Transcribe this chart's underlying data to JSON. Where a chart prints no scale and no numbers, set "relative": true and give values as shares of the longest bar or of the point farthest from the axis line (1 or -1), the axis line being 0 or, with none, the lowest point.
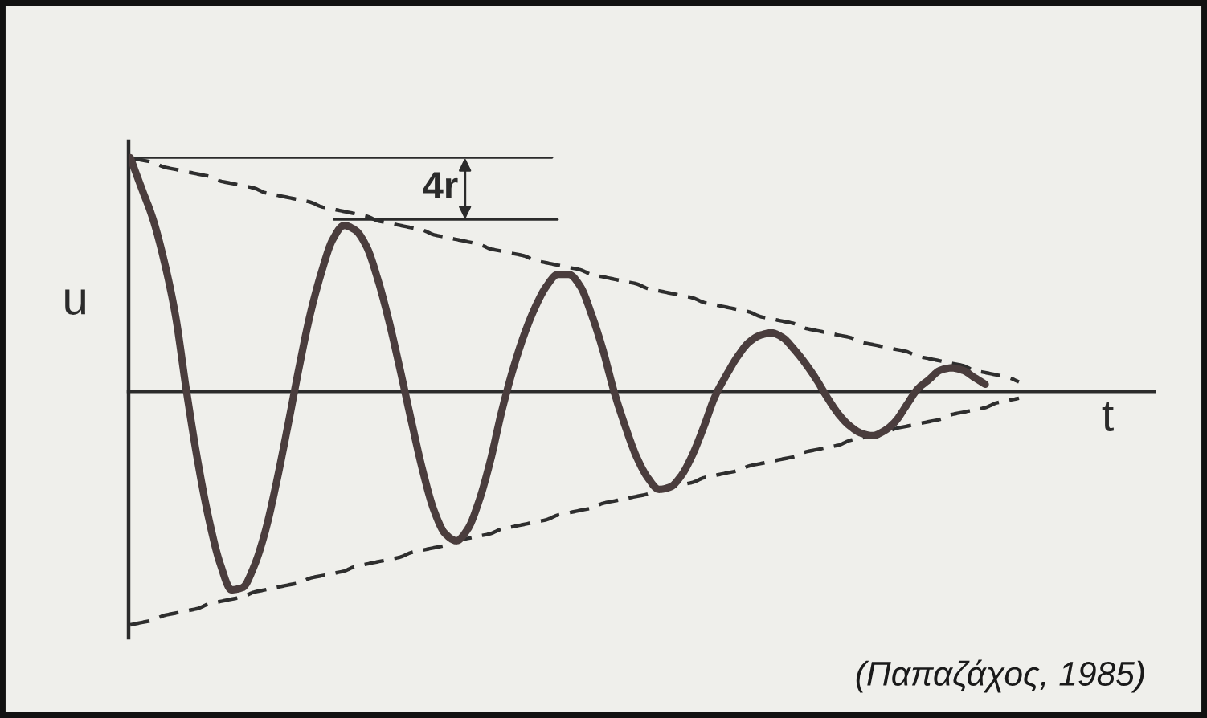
{
  "chart_data": {
    "type": "line",
    "relative": true,
    "xlabel": "t",
    "ylabel": "u",
    "categories": [
      null,
      null,
      null,
      null,
      null,
      null,
      null,
      null,
      null,
      null,
      null,
      null,
      null,
      null,
      null,
      null,
      null,
      null,
      null,
      null,
      null,
      null,
      null,
      null,
      null,
      null,
      null,
      null,
      null,
      null,
      null,
      null,
      null,
      null,
      null,
      null,
      null,
      null,
      null,
      null,
      null,
      null,
      null,
      null,
      null,
      null,
      null,
      null,
      null,
      null,
      null,
      null,
      null,
      null,
      null,
      null,
      null,
      null,
      null,
      null,
      null,
      null,
      null,
      null,
      null,
      null,
      null,
      null,
      null,
      null,
      null,
      null,
      null,
      null,
      null,
      null,
      null,
      null,
      null,
      null,
      null,
      null,
      null,
      null,
      null,
      null,
      null,
      null,
      null,
      null,
      null,
      null
    ],
    "series": [
      {
        "color": "#4a3d3d",
        "line_style": "solid",
        "values": [
          1.0,
          0.87,
          0.74,
          0.56,
          0.33,
          0.0,
          -0.3,
          -0.55,
          -0.74,
          -0.85,
          -0.84,
          -0.75,
          -0.6,
          -0.39,
          -0.15,
          0.1,
          0.33,
          0.51,
          0.65,
          0.71,
          0.69,
          0.62,
          0.48,
          0.3,
          0.09,
          -0.13,
          -0.34,
          -0.51,
          -0.61,
          -0.64,
          -0.59,
          -0.47,
          -0.3,
          -0.09,
          0.09,
          0.24,
          0.36,
          0.45,
          0.5,
          0.5,
          0.45,
          0.33,
          0.18,
          0.0,
          -0.15,
          -0.28,
          -0.37,
          -0.42,
          -0.41,
          -0.36,
          -0.27,
          -0.15,
          -0.02,
          0.07,
          0.15,
          0.21,
          0.24,
          0.25,
          0.23,
          0.18,
          0.12,
          0.05,
          -0.03,
          -0.1,
          -0.15,
          -0.18,
          -0.19,
          -0.17,
          -0.13,
          -0.06,
          0.01,
          0.05,
          0.09,
          0.1,
          0.09,
          0.06,
          0.03,
          null,
          null,
          null,
          null,
          null,
          null,
          null,
          null,
          null,
          null,
          null,
          null,
          null,
          null,
          null
        ]
      },
      {
        "color": "#2e2e2e",
        "line_style": "dashed",
        "values": [
          1.0,
          0.99,
          0.98,
          0.96,
          0.95,
          0.94,
          0.93,
          0.92,
          0.9,
          0.89,
          0.88,
          0.87,
          0.85,
          0.84,
          0.83,
          0.82,
          0.81,
          0.79,
          0.78,
          0.77,
          0.76,
          0.75,
          0.73,
          0.72,
          0.71,
          0.7,
          0.69,
          0.67,
          0.66,
          0.65,
          0.64,
          0.63,
          0.61,
          0.6,
          0.59,
          0.58,
          0.56,
          0.55,
          0.54,
          0.53,
          0.52,
          0.5,
          0.49,
          0.48,
          0.47,
          0.46,
          0.44,
          0.43,
          0.42,
          0.41,
          0.4,
          0.38,
          0.37,
          0.36,
          0.35,
          0.34,
          0.32,
          0.31,
          0.3,
          0.29,
          0.27,
          0.26,
          0.25,
          0.24,
          0.23,
          0.21,
          0.2,
          0.19,
          0.18,
          0.17,
          0.15,
          0.14,
          0.13,
          0.12,
          0.11,
          0.09,
          0.08,
          0.07,
          0.06,
          0.04,
          null,
          null,
          null,
          null,
          null,
          null,
          null,
          null,
          null,
          null,
          null,
          null
        ]
      },
      {
        "color": "#2e2e2e",
        "line_style": "dashed",
        "values": [
          -1.0,
          -0.99,
          -0.98,
          -0.96,
          -0.95,
          -0.94,
          -0.93,
          -0.91,
          -0.9,
          -0.89,
          -0.88,
          -0.86,
          -0.85,
          -0.84,
          -0.83,
          -0.82,
          -0.8,
          -0.79,
          -0.78,
          -0.77,
          -0.75,
          -0.74,
          -0.73,
          -0.72,
          -0.71,
          -0.69,
          -0.68,
          -0.67,
          -0.66,
          -0.64,
          -0.63,
          -0.62,
          -0.61,
          -0.59,
          -0.58,
          -0.57,
          -0.56,
          -0.55,
          -0.53,
          -0.52,
          -0.51,
          -0.5,
          -0.48,
          -0.47,
          -0.46,
          -0.45,
          -0.44,
          -0.42,
          -0.41,
          -0.4,
          -0.39,
          -0.37,
          -0.36,
          -0.35,
          -0.34,
          -0.32,
          -0.31,
          -0.3,
          -0.29,
          -0.28,
          -0.26,
          -0.25,
          -0.24,
          -0.23,
          -0.21,
          -0.2,
          -0.19,
          -0.18,
          -0.16,
          -0.15,
          -0.14,
          -0.13,
          -0.12,
          -0.1,
          -0.09,
          -0.08,
          -0.07,
          -0.05,
          -0.04,
          -0.03,
          null,
          null,
          null,
          null,
          null,
          null,
          null,
          null,
          null,
          null,
          null,
          null
        ]
      }
    ],
    "annotations": [
      "4r",
      "(Παπαζάχος, 1985)"
    ]
  }
}
